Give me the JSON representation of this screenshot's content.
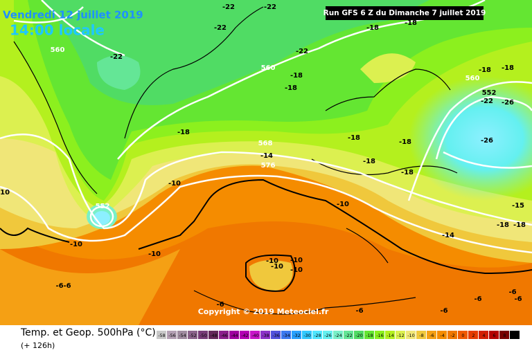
{
  "header": {
    "valid_date": "Vendredi 12 juillet 2019",
    "local_time": "14:00 locale",
    "run": "Run GFS 6 Z du Dimanche 7 juillet 2019",
    "copyright": "Copyright © 2019 Meteociel.fr"
  },
  "legend": {
    "title": "Temp. et Geop. 500hPa (°C)",
    "lead_time": "(+ 126h)",
    "scale": [
      -58,
      -56,
      -54,
      -52,
      -50,
      -48,
      -46,
      -44,
      -42,
      -40,
      -38,
      -36,
      -34,
      -32,
      -30,
      -28,
      -26,
      -24,
      -22,
      -20,
      -18,
      -16,
      -14,
      -12,
      -10,
      -8,
      -6,
      -4,
      -2,
      0,
      2,
      4,
      6,
      8,
      10
    ],
    "colors": [
      "#c8c8c8",
      "#b4a0b4",
      "#a08ca0",
      "#8c648c",
      "#783c78",
      "#64285a",
      "#8c1e8c",
      "#a000a0",
      "#b400b4",
      "#c814c8",
      "#8c32c8",
      "#5050dc",
      "#3c78f0",
      "#28a0ff",
      "#32c8ff",
      "#50e6ff",
      "#64f0f0",
      "#78f0c8",
      "#64e696",
      "#50dc64",
      "#64e632",
      "#8cf01e",
      "#b4f01e",
      "#dcf050",
      "#f0e678",
      "#f0c83c",
      "#f5a014",
      "#f58c00",
      "#f07800",
      "#f05a00",
      "#e63c00",
      "#d21e00",
      "#b40000",
      "#780000",
      "#000000"
    ]
  },
  "map_labels": [
    "-22",
    "-22",
    "-22",
    "560",
    "-22",
    "-22",
    "-18",
    "-18",
    "560",
    "-18",
    "-18",
    "560",
    "-18",
    "-18",
    "552",
    "-22",
    "-26",
    "-26",
    "-18",
    "568",
    "-14",
    "576",
    "-18",
    "-18",
    "-18",
    "-18",
    "-10",
    "-10",
    "552",
    "-10",
    "-10",
    "-10",
    "-14",
    "-15",
    "-18",
    "-18",
    "-10",
    "-10",
    "-10",
    "-10",
    "-6",
    "-6",
    "-6",
    "-6",
    "-6",
    "-6",
    "-6",
    "-6"
  ]
}
